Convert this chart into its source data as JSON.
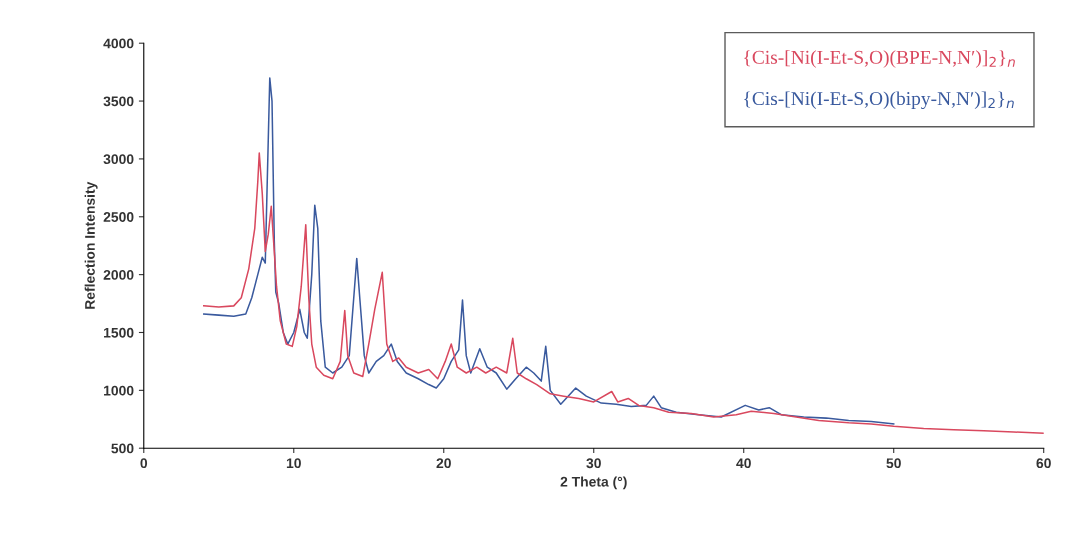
{
  "chart_data": {
    "type": "line",
    "xlabel": "2 Theta (°)",
    "ylabel": "Reflection Intensity",
    "xlim": [
      0,
      60
    ],
    "xticks": [
      0,
      10,
      20,
      30,
      40,
      50,
      60
    ],
    "ylim": [
      500,
      4000
    ],
    "yticks": [
      500,
      1000,
      1500,
      2000,
      2500,
      3000,
      3500,
      4000
    ],
    "grid": false,
    "legend": "top right",
    "marker": "none",
    "line_style": "solid",
    "series": [
      {
        "name": "{Cis-[Ni(I-Et-S,O)(bipy-N,N′)]$_{2}$}$_{n}$",
        "color": "#3a5a9e",
        "x": [
          4,
          5,
          6,
          6.8,
          7.2,
          7.6,
          7.9,
          8.1,
          8.25,
          8.4,
          8.55,
          8.7,
          8.8,
          9.0,
          9.3,
          9.6,
          10.0,
          10.4,
          10.7,
          10.9,
          11.2,
          11.4,
          11.6,
          11.8,
          12.1,
          12.6,
          13.2,
          13.7,
          14.0,
          14.2,
          14.4,
          14.7,
          15.0,
          15.5,
          16.0,
          16.5,
          16.9,
          17.5,
          18.3,
          19.0,
          19.5,
          20.0,
          20.5,
          21.0,
          21.25,
          21.5,
          21.8,
          22.4,
          22.9,
          23.5,
          24.2,
          24.8,
          25.5,
          26.0,
          26.5,
          26.8,
          27.1,
          27.8,
          28.8,
          29.5,
          30.5,
          31.5,
          32.5,
          33.5,
          34.0,
          34.5,
          35.5,
          37,
          38.5,
          40.1,
          41,
          41.7,
          42.5,
          44,
          45.5,
          47,
          48.5,
          50
        ],
        "values": [
          1660,
          1650,
          1640,
          1660,
          1800,
          2000,
          2150,
          2100,
          2900,
          3700,
          3500,
          2300,
          1850,
          1750,
          1500,
          1400,
          1500,
          1700,
          1500,
          1450,
          2000,
          2600,
          2400,
          1600,
          1200,
          1150,
          1200,
          1300,
          1800,
          2140,
          1800,
          1300,
          1150,
          1250,
          1300,
          1400,
          1250,
          1150,
          1100,
          1050,
          1020,
          1100,
          1250,
          1350,
          1780,
          1300,
          1150,
          1360,
          1200,
          1150,
          1010,
          1100,
          1200,
          1150,
          1080,
          1380,
          1000,
          880,
          1020,
          950,
          890,
          880,
          860,
          870,
          950,
          850,
          810,
          790,
          770,
          870,
          830,
          850,
          790,
          770,
          760,
          740,
          730,
          710
        ]
      },
      {
        "name": "{Cis-[Ni(I-Et-S,O)(BPE-N,N′)]$_{2}$}$_{n}$",
        "color": "#d9485e",
        "x": [
          4,
          5,
          6,
          6.5,
          7.0,
          7.4,
          7.6,
          7.7,
          7.9,
          8.1,
          8.3,
          8.5,
          8.7,
          8.85,
          9.1,
          9.5,
          9.9,
          10.2,
          10.5,
          10.8,
          11.0,
          11.2,
          11.5,
          12.0,
          12.6,
          13.1,
          13.4,
          13.6,
          14.0,
          14.6,
          15.0,
          15.4,
          15.9,
          16.2,
          16.6,
          17.0,
          17.5,
          18.3,
          19.0,
          19.6,
          20.1,
          20.5,
          20.9,
          21.5,
          22.2,
          22.8,
          23.5,
          24.2,
          24.6,
          24.9,
          25.5,
          26.2,
          27.1,
          28,
          29,
          30,
          31.2,
          31.6,
          32.3,
          33,
          34,
          35,
          36.5,
          38,
          39.5,
          40.5,
          42,
          43.5,
          45,
          47,
          48.5,
          50,
          52,
          54,
          56,
          58,
          60
        ],
        "values": [
          1730,
          1720,
          1730,
          1800,
          2050,
          2400,
          2800,
          3050,
          2700,
          2200,
          2350,
          2590,
          2200,
          1900,
          1600,
          1400,
          1380,
          1550,
          1900,
          2430,
          1800,
          1400,
          1200,
          1130,
          1100,
          1250,
          1690,
          1300,
          1150,
          1120,
          1400,
          1700,
          2020,
          1400,
          1250,
          1280,
          1200,
          1150,
          1180,
          1100,
          1250,
          1400,
          1200,
          1150,
          1200,
          1150,
          1200,
          1150,
          1450,
          1150,
          1100,
          1050,
          970,
          950,
          930,
          900,
          990,
          900,
          930,
          870,
          850,
          810,
          800,
          770,
          790,
          820,
          800,
          770,
          740,
          720,
          710,
          690,
          670,
          660,
          650,
          640,
          630
        ]
      }
    ]
  }
}
